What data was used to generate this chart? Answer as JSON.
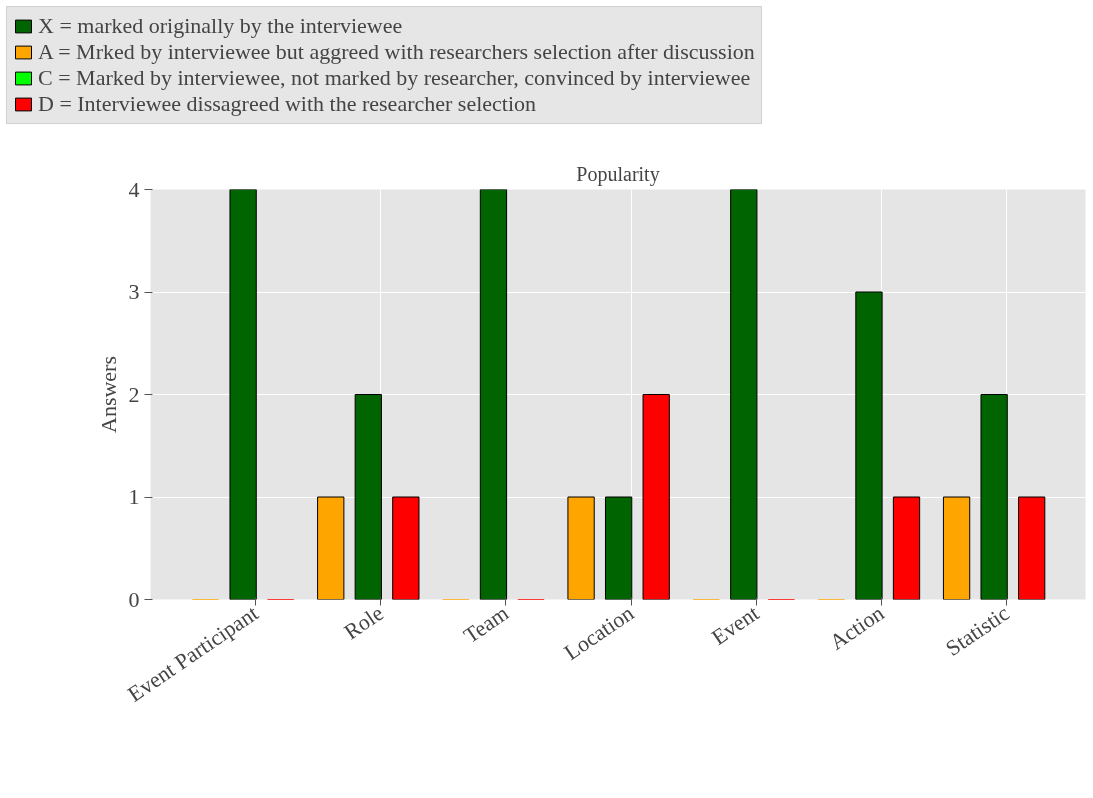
{
  "chart_data": {
    "type": "bar",
    "title": "Popularity",
    "ylabel": "Answers",
    "categories": [
      "Event Participant",
      "Role",
      "Team",
      "Location",
      "Event",
      "Action",
      "Statistic"
    ],
    "series": [
      {
        "name": "X = marked originally by the interviewee",
        "color": "#006400",
        "values": [
          4,
          2,
          4,
          1,
          4,
          3,
          2
        ]
      },
      {
        "name": "A = Mrked by interviewee but aggreed with researchers selection after discussion",
        "color": "#ffa500",
        "values": [
          0,
          1,
          0,
          1,
          0,
          0,
          1
        ]
      },
      {
        "name": "C = Marked by interviewee, not marked by researcher, convinced by interviewee",
        "color": "#00ff00",
        "values": [
          null,
          null,
          null,
          null,
          null,
          null,
          null
        ]
      },
      {
        "name": "D = Interviewee dissagreed with the researcher selection",
        "color": "#ff0000",
        "values": [
          0,
          1,
          0,
          2,
          0,
          1,
          1
        ]
      }
    ],
    "ylim": [
      0,
      4
    ],
    "yticks": [
      0,
      1,
      2,
      3,
      4
    ],
    "grid": true,
    "legend": "top"
  }
}
